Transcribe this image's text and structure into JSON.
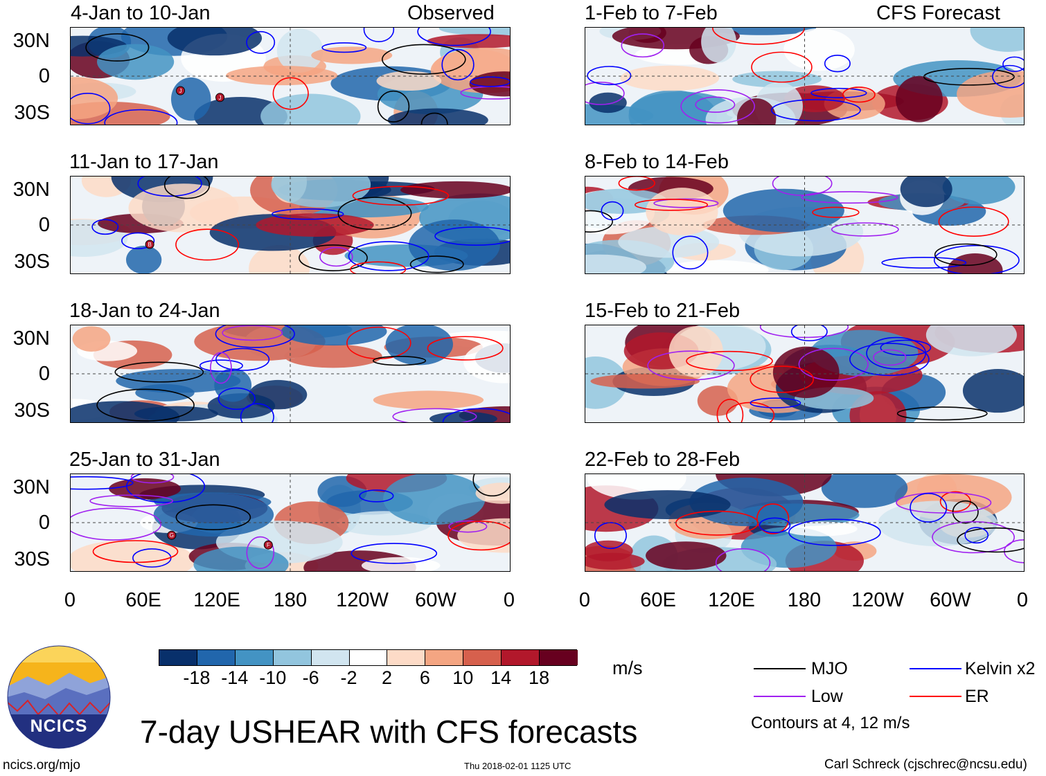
{
  "header": {
    "left_column_label": "Observed",
    "right_column_label": "CFS Forecast"
  },
  "panels_left": [
    {
      "title": "4-Jan to 10-Jan"
    },
    {
      "title": "11-Jan to 17-Jan"
    },
    {
      "title": "18-Jan to 24-Jan"
    },
    {
      "title": "25-Jan to 31-Jan"
    }
  ],
  "panels_right": [
    {
      "title": "1-Feb to 7-Feb"
    },
    {
      "title": "8-Feb to 14-Feb"
    },
    {
      "title": "15-Feb to 21-Feb"
    },
    {
      "title": "22-Feb to 28-Feb"
    }
  ],
  "axes": {
    "y_ticks": [
      "30N",
      "0",
      "30S"
    ],
    "x_ticks": [
      "0",
      "60E",
      "120E",
      "180",
      "120W",
      "60W",
      "0"
    ]
  },
  "storm_labels": [
    "J",
    "J",
    "B",
    "G",
    "F"
  ],
  "colorbar": {
    "tick_labels": [
      "-18",
      "-14",
      "-10",
      "-6",
      "-2",
      "2",
      "6",
      "10",
      "14",
      "18"
    ],
    "units": "m/s",
    "colors": [
      "#08306b",
      "#2166ac",
      "#4393c3",
      "#92c5de",
      "#d1e5f0",
      "#ffffff",
      "#fddbc7",
      "#f4a582",
      "#d6604d",
      "#b2182b",
      "#67001f"
    ]
  },
  "legend": {
    "items": [
      {
        "label": "MJO",
        "color": "#000000"
      },
      {
        "label": "Kelvin x2",
        "color": "#0000ff"
      },
      {
        "label": "Low",
        "color": "#a020f0"
      },
      {
        "label": "ER",
        "color": "#ff0000"
      }
    ],
    "note": "Contours at 4, 12 m/s"
  },
  "footer": {
    "main_title": "7-day USHEAR with CFS forecasts",
    "logo_text": "NCICS",
    "website": "ncics.org/mjo",
    "timestamp": "Thu 2018-02-01 1125 UTC",
    "credit": "Carl Schreck (cjschrec@ncsu.edu)"
  }
}
